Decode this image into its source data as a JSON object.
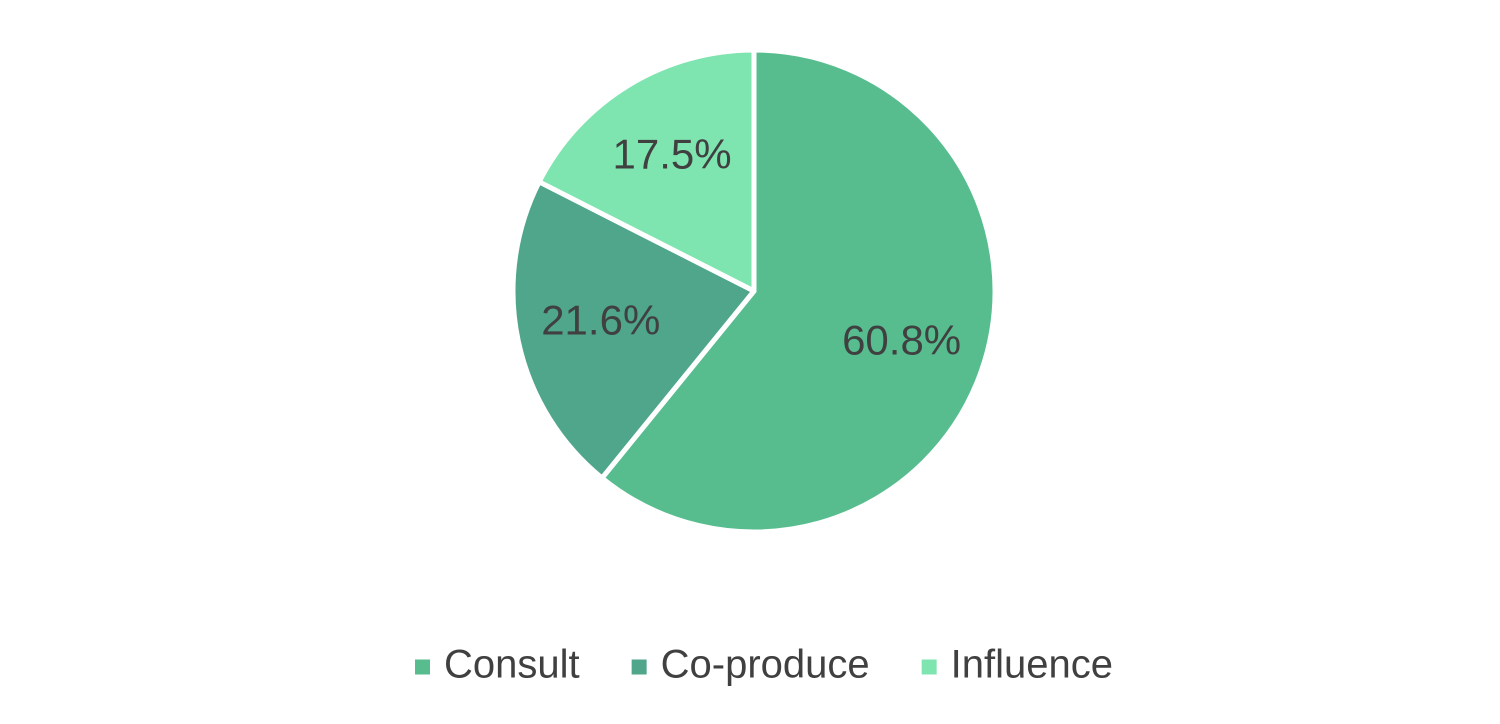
{
  "chart_data": {
    "type": "pie",
    "categories": [
      "Consult",
      "Co-produce",
      "Influence"
    ],
    "values": [
      60.8,
      21.6,
      17.5
    ],
    "value_labels": [
      "60.8%",
      "21.6%",
      "17.5%"
    ],
    "colors": [
      "#57bd8f",
      "#4fa68a",
      "#7fe5b0"
    ],
    "legend": "bottom"
  }
}
